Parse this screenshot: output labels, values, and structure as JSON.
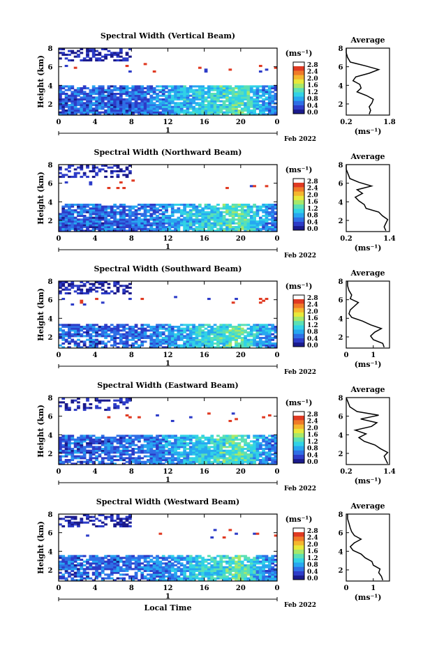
{
  "figure": {
    "date_label": "Feb 2022",
    "day_label": "1",
    "xlabel": "Local Time",
    "colorbar_unit": "(ms⁻¹)",
    "average_title": "Average",
    "average_unit": "(ms⁻¹)"
  },
  "colorbar": {
    "ticks": [
      "0.0",
      "0.4",
      "0.8",
      "1.2",
      "1.6",
      "2.0",
      "2.4",
      "2.8"
    ],
    "colors": [
      "#1a1a8c",
      "#2d3cc8",
      "#2e6fe6",
      "#27a7f0",
      "#31d2e6",
      "#5be0b4",
      "#a6e86a",
      "#e8e83a",
      "#f5b62e",
      "#f07a28",
      "#e03a22"
    ]
  },
  "chart_data": [
    {
      "type": "heatmap",
      "title": "Spectral Width (Vertical Beam)",
      "xlabel": "",
      "ylabel": "Height (km)",
      "x_ticks": [
        "0",
        "4",
        "8",
        "12",
        "16",
        "20",
        "0"
      ],
      "y_ticks": [
        "2",
        "4",
        "6",
        "8"
      ],
      "xlim": [
        0,
        24
      ],
      "ylim": [
        0.8,
        8.0
      ],
      "zlim": [
        0.0,
        2.8
      ],
      "average": {
        "title": "Average",
        "xlabel": "(ms⁻¹)",
        "x_ticks": [
          "0.2",
          "1.8"
        ],
        "y_ticks": [
          "2",
          "4",
          "6",
          "8"
        ],
        "xlim": [
          0.2,
          1.8
        ],
        "ylim": [
          0.8,
          8.0
        ],
        "height": [
          0.9,
          1.3,
          1.7,
          2.1,
          2.5,
          2.9,
          3.3,
          3.7,
          4.1,
          4.5,
          4.9,
          5.3,
          5.7,
          6.1,
          6.5,
          7.0,
          7.5,
          8.0
        ],
        "value": [
          1.05,
          1.1,
          1.05,
          1.15,
          1.2,
          0.95,
          0.6,
          0.75,
          0.7,
          0.45,
          0.55,
          1.05,
          1.4,
          0.9,
          0.35,
          0.25,
          0.2,
          0.2
        ]
      }
    },
    {
      "type": "heatmap",
      "title": "Spectral Width (Northward Beam)",
      "xlabel": "",
      "ylabel": "Height (km)",
      "x_ticks": [
        "0",
        "4",
        "8",
        "12",
        "16",
        "20",
        "0"
      ],
      "y_ticks": [
        "2",
        "4",
        "6",
        "8"
      ],
      "xlim": [
        0,
        24
      ],
      "ylim": [
        0.8,
        8.0
      ],
      "zlim": [
        0.0,
        2.8
      ],
      "average": {
        "title": "Average",
        "xlabel": "(ms⁻¹)",
        "x_ticks": [
          "0.2",
          "1.4"
        ],
        "y_ticks": [
          "2",
          "4",
          "6",
          "8"
        ],
        "xlim": [
          0.2,
          1.4
        ],
        "ylim": [
          0.8,
          8.0
        ],
        "height": [
          0.9,
          1.3,
          1.7,
          2.1,
          2.5,
          2.9,
          3.3,
          3.7,
          4.1,
          4.5,
          4.9,
          5.3,
          5.7,
          6.1,
          6.5,
          7.0,
          7.5,
          8.0
        ],
        "value": [
          1.3,
          1.25,
          1.3,
          1.35,
          1.2,
          1.1,
          0.75,
          0.7,
          0.55,
          0.45,
          0.65,
          0.5,
          0.9,
          0.55,
          0.3,
          0.25,
          0.2,
          0.2
        ]
      }
    },
    {
      "type": "heatmap",
      "title": "Spectral Width (Southward Beam)",
      "xlabel": "",
      "ylabel": "Height (km)",
      "x_ticks": [
        "0",
        "4",
        "8",
        "12",
        "16",
        "20",
        "0"
      ],
      "y_ticks": [
        "2",
        "4",
        "6",
        "8"
      ],
      "xlim": [
        0,
        24
      ],
      "ylim": [
        0.8,
        8.0
      ],
      "zlim": [
        0.0,
        2.8
      ],
      "average": {
        "title": "Average",
        "xlabel": "(ms⁻¹)",
        "x_ticks": [
          "0",
          "1"
        ],
        "y_ticks": [
          "2",
          "4",
          "6",
          "8"
        ],
        "xlim": [
          0,
          1.6
        ],
        "ylim": [
          0.8,
          8.0
        ],
        "height": [
          0.9,
          1.3,
          1.7,
          2.1,
          2.5,
          2.9,
          3.3,
          3.7,
          4.1,
          4.5,
          4.9,
          5.3,
          5.7,
          6.1,
          6.5,
          7.0,
          7.5,
          8.0
        ],
        "value": [
          1.4,
          1.35,
          1.0,
          0.9,
          1.05,
          1.3,
          0.9,
          0.6,
          0.2,
          0.1,
          0.15,
          0.3,
          0.45,
          0.15,
          0.2,
          0.1,
          0.05,
          0.05
        ]
      }
    },
    {
      "type": "heatmap",
      "title": "Spectral Width (Eastward Beam)",
      "xlabel": "",
      "ylabel": "Height (km)",
      "x_ticks": [
        "0",
        "4",
        "8",
        "12",
        "16",
        "20",
        "0"
      ],
      "y_ticks": [
        "2",
        "4",
        "6",
        "8"
      ],
      "xlim": [
        0,
        24
      ],
      "ylim": [
        0.8,
        8.0
      ],
      "zlim": [
        0.0,
        2.8
      ],
      "average": {
        "title": "Average",
        "xlabel": "(ms⁻¹)",
        "x_ticks": [
          "0.2",
          "1.4"
        ],
        "y_ticks": [
          "2",
          "4",
          "6",
          "8"
        ],
        "xlim": [
          0.2,
          1.4
        ],
        "ylim": [
          0.8,
          8.0
        ],
        "height": [
          0.9,
          1.3,
          1.7,
          2.1,
          2.5,
          2.9,
          3.3,
          3.7,
          4.1,
          4.5,
          4.9,
          5.3,
          5.7,
          6.1,
          6.5,
          7.0,
          7.5,
          8.0
        ],
        "value": [
          1.35,
          1.3,
          1.25,
          1.35,
          1.15,
          1.0,
          0.7,
          0.55,
          0.75,
          0.45,
          0.9,
          1.05,
          0.6,
          1.1,
          0.5,
          0.3,
          0.25,
          0.2
        ]
      }
    },
    {
      "type": "heatmap",
      "title": "Spectral Width (Westward Beam)",
      "xlabel": "Local Time",
      "ylabel": "Height (km)",
      "x_ticks": [
        "0",
        "4",
        "8",
        "12",
        "16",
        "20",
        "0"
      ],
      "y_ticks": [
        "2",
        "4",
        "6",
        "8"
      ],
      "xlim": [
        0,
        24
      ],
      "ylim": [
        0.8,
        8.0
      ],
      "zlim": [
        0.0,
        2.8
      ],
      "average": {
        "title": "Average",
        "xlabel": "(ms⁻¹)",
        "x_ticks": [
          "0",
          "1"
        ],
        "y_ticks": [
          "2",
          "4",
          "6",
          "8"
        ],
        "xlim": [
          0,
          1.6
        ],
        "ylim": [
          0.8,
          8.0
        ],
        "height": [
          0.9,
          1.3,
          1.7,
          2.1,
          2.5,
          2.9,
          3.3,
          3.7,
          4.1,
          4.5,
          4.9,
          5.3,
          5.7,
          6.1,
          6.5,
          7.0,
          7.5,
          8.0
        ],
        "value": [
          1.35,
          1.3,
          1.2,
          1.25,
          1.0,
          0.95,
          0.7,
          0.55,
          0.25,
          0.15,
          0.3,
          0.55,
          0.3,
          0.2,
          0.15,
          0.1,
          0.05,
          0.05
        ]
      }
    }
  ]
}
